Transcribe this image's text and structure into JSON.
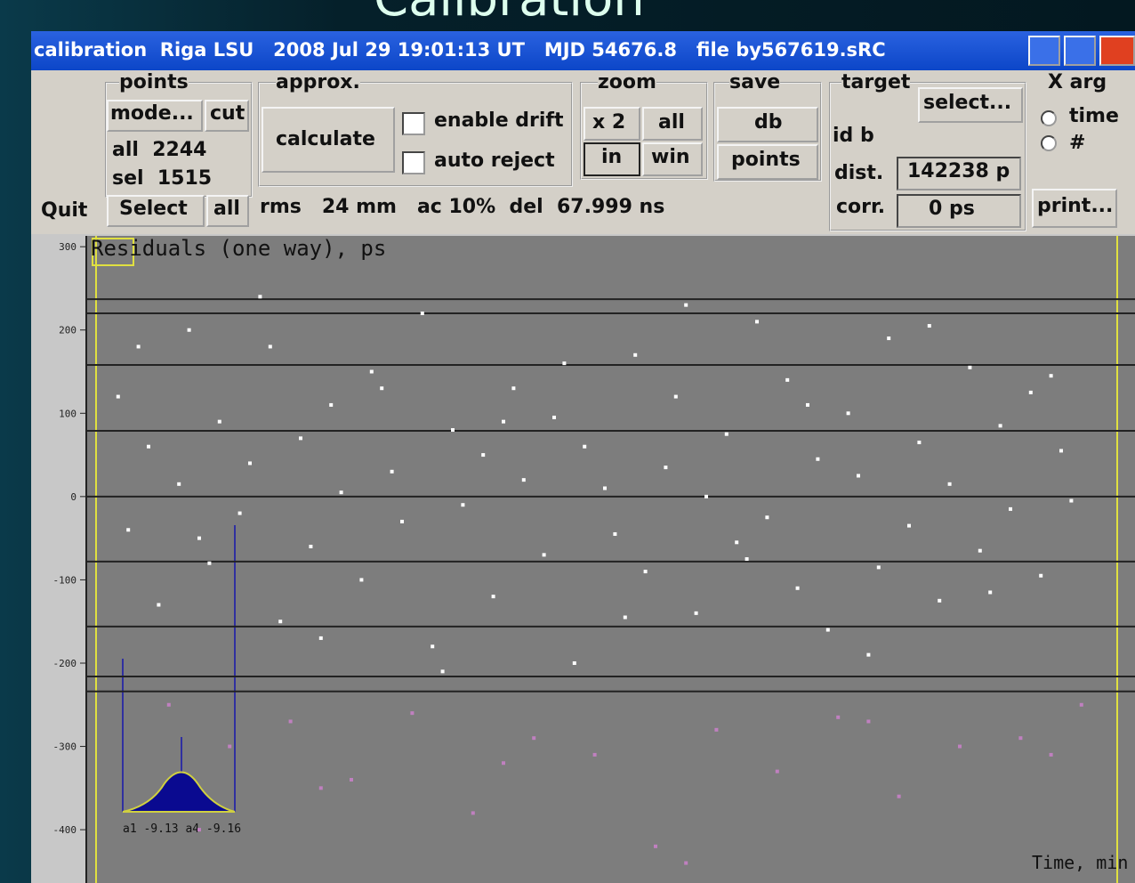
{
  "heading": "Calibration",
  "window": {
    "title": "calibration  Riga LSU   2008 Jul 29 19:01:13 UT   MJD 54676.8   file by567619.sRC",
    "points": {
      "label": "points",
      "mode": "mode...",
      "cut": "cut",
      "all": "all  2244",
      "sel": "sel  1515",
      "select": "Select",
      "select_all": "all"
    },
    "quit": "Quit",
    "approx": {
      "label": "approx.",
      "calculate": "calculate",
      "drift": "enable drift",
      "reject": "auto reject"
    },
    "zoom": {
      "label": "zoom",
      "x2": "x 2",
      "all": "all",
      "in": "in",
      "win": "win"
    },
    "save": {
      "label": "save",
      "db": "db",
      "points": "points"
    },
    "target": {
      "label": "target",
      "select": "select...",
      "id": "id b",
      "dist_label": "dist.",
      "dist": "142238 p",
      "corr_label": "corr.",
      "corr": "0 ps"
    },
    "xarg": {
      "label": "X arg",
      "time": "time",
      "index": "#"
    },
    "print": "print...",
    "status": "rms   24 mm   ac 10%  del  67.999 ns"
  },
  "chart_data": {
    "type": "scatter",
    "title": "Residuals (one way), ps",
    "x_label": "Time, min",
    "hist_label": "a1 -9.13 a4 -9.16",
    "xlim": [
      0,
      100
    ],
    "ylim": [
      -464,
      313
    ],
    "yticks": [
      300,
      200,
      100,
      0,
      -100,
      -200,
      -300,
      -400
    ],
    "ref_lines": [
      237,
      220,
      158,
      79,
      0,
      -78,
      -156,
      -216,
      -234
    ],
    "series": [
      {
        "color": "#ffffff",
        "x": [
          2,
          3,
          5,
          6,
          8,
          9,
          11,
          12,
          14,
          15,
          17,
          18,
          20,
          21,
          23,
          24,
          26,
          27,
          29,
          30,
          32,
          33,
          35,
          36,
          38,
          39,
          41,
          42,
          44,
          45,
          47,
          48,
          50,
          51,
          53,
          54,
          56,
          57,
          59,
          60,
          62,
          63,
          65,
          66,
          68,
          69,
          71,
          72,
          74,
          75,
          77,
          78,
          80,
          81,
          83,
          84,
          86,
          87,
          89,
          90,
          92,
          93,
          95,
          96,
          4,
          10,
          16,
          22,
          28,
          34,
          40,
          46,
          52,
          58,
          64,
          70,
          76,
          82,
          88,
          94
        ],
        "y": [
          120,
          -40,
          60,
          -130,
          15,
          200,
          -80,
          90,
          -20,
          40,
          180,
          -150,
          70,
          -60,
          110,
          5,
          -100,
          150,
          30,
          -30,
          220,
          -180,
          80,
          -10,
          50,
          -120,
          130,
          20,
          -70,
          95,
          -200,
          60,
          10,
          -45,
          170,
          -90,
          35,
          120,
          -140,
          0,
          75,
          -55,
          210,
          -25,
          140,
          -110,
          45,
          -160,
          100,
          25,
          -85,
          190,
          -35,
          65,
          -125,
          15,
          155,
          -65,
          85,
          -15,
          125,
          -95,
          55,
          -5,
          180,
          -50,
          240,
          -170,
          130,
          -210,
          90,
          160,
          -145,
          230,
          -75,
          110,
          -190,
          205,
          -115,
          145
        ]
      },
      {
        "color": "#c080c0",
        "x": [
          7,
          13,
          19,
          25,
          31,
          37,
          43,
          49,
          55,
          61,
          67,
          73,
          79,
          85,
          91,
          97,
          10,
          22,
          40,
          58,
          76,
          94
        ],
        "y": [
          -250,
          -300,
          -270,
          -340,
          -260,
          -380,
          -290,
          -310,
          -420,
          -280,
          -330,
          -265,
          -360,
          -300,
          -290,
          -250,
          -400,
          -350,
          -320,
          -440,
          -270,
          -310
        ]
      }
    ]
  }
}
